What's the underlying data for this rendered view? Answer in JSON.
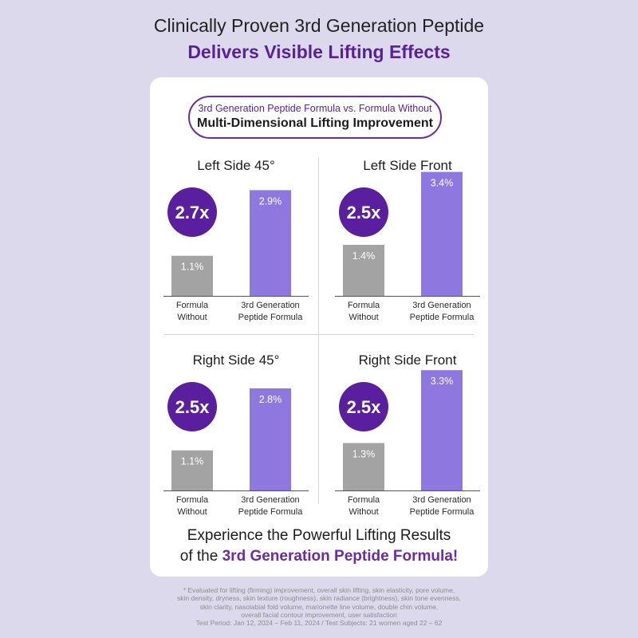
{
  "header": {
    "line1": "Clinically Proven 3rd Generation Peptide",
    "line2": "Delivers Visible Lifting Effects"
  },
  "pill": {
    "subtitle": "3rd Generation Peptide Formula vs. Formula Without",
    "title": "Multi-Dimensional Lifting Improvement"
  },
  "colors": {
    "accent": "#6b2aa8",
    "circle": "#5a1f9e",
    "bar_without": "#a3a3a3",
    "bar_peptide": "#8e78e0",
    "background": "#dcd9ec"
  },
  "chart_data": [
    {
      "type": "bar",
      "title": "Left Side 45°",
      "multiplier": "2.7x",
      "categories": [
        "Formula Without",
        "3rd Generation Peptide Formula"
      ],
      "category_lines": [
        [
          "Formula",
          "Without"
        ],
        [
          "3rd Generation",
          "Peptide Formula"
        ]
      ],
      "values": [
        1.1,
        2.9
      ],
      "value_labels": [
        "1.1%",
        "2.9%"
      ],
      "ylim": [
        0,
        3.5
      ]
    },
    {
      "type": "bar",
      "title": "Left Side Front",
      "multiplier": "2.5x",
      "categories": [
        "Formula Without",
        "3rd Generation Peptide Formula"
      ],
      "category_lines": [
        [
          "Formula",
          "Without"
        ],
        [
          "3rd Generation",
          "Peptide Formula"
        ]
      ],
      "values": [
        1.4,
        3.4
      ],
      "value_labels": [
        "1.4%",
        "3.4%"
      ],
      "ylim": [
        0,
        3.5
      ]
    },
    {
      "type": "bar",
      "title": "Right Side 45°",
      "multiplier": "2.5x",
      "categories": [
        "Formula Without",
        "3rd Generation Peptide Formula"
      ],
      "category_lines": [
        [
          "Formula",
          "Without"
        ],
        [
          "3rd Generation",
          "Peptide Formula"
        ]
      ],
      "values": [
        1.1,
        2.8
      ],
      "value_labels": [
        "1.1%",
        "2.8%"
      ],
      "ylim": [
        0,
        3.5
      ]
    },
    {
      "type": "bar",
      "title": "Right Side Front",
      "multiplier": "2.5x",
      "categories": [
        "Formula Without",
        "3rd Generation Peptide Formula"
      ],
      "category_lines": [
        [
          "Formula",
          "Without"
        ],
        [
          "3rd Generation",
          "Peptide Formula"
        ]
      ],
      "values": [
        1.3,
        3.3
      ],
      "value_labels": [
        "1.3%",
        "3.3%"
      ],
      "ylim": [
        0,
        3.5
      ]
    }
  ],
  "footer": {
    "line1": "Experience the Powerful Lifting Results",
    "line2_prefix": "of the ",
    "line2_accent": "3rd Generation Peptide Formula!"
  },
  "footnote": {
    "lines": [
      "* Evaluated for lifting (firming) improvement, overall skin lifting, skin elasticity, pore volume,",
      "skin density, dryness, skin texture (roughness), skin radiance (brightness), skin tone evenness,",
      "skin clarity, nasolabial fold volume, marionette line volume, double chin volume,",
      "overall facial contour improvement, user satisfaction",
      "Test Period: Jan 12, 2024 – Feb 11, 2024 / Test Subjects: 21 women aged 22 – 62"
    ]
  }
}
